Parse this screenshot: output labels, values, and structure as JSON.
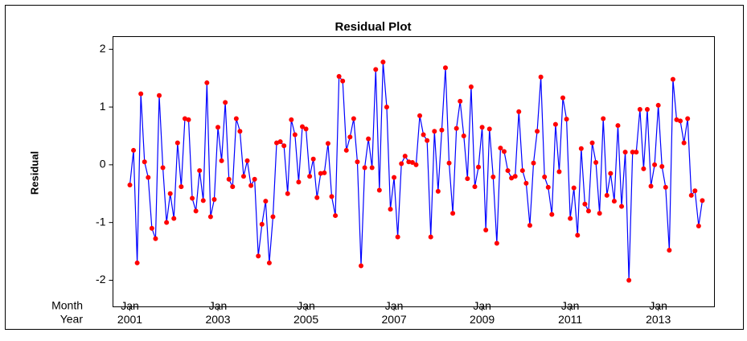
{
  "chart_data": {
    "type": "line",
    "title": "Residual Plot",
    "ylabel": "Residual",
    "xrow_labels": [
      "Month",
      "Year"
    ],
    "values": [
      -0.35,
      0.25,
      -1.7,
      1.23,
      0.05,
      -0.22,
      -1.1,
      -1.28,
      1.2,
      -0.05,
      -1.0,
      -0.5,
      -0.93,
      0.38,
      -0.38,
      0.8,
      0.78,
      -0.58,
      -0.8,
      -0.1,
      -0.62,
      1.42,
      -0.9,
      -0.6,
      0.65,
      0.07,
      1.08,
      -0.25,
      -0.38,
      0.8,
      0.58,
      -0.2,
      0.07,
      -0.36,
      -0.25,
      -1.58,
      -1.03,
      -0.63,
      -1.7,
      -0.9,
      0.38,
      0.4,
      0.33,
      -0.5,
      0.78,
      0.52,
      -0.3,
      0.66,
      0.62,
      -0.2,
      0.1,
      -0.57,
      -0.15,
      -0.14,
      0.37,
      -0.55,
      -0.88,
      1.53,
      1.45,
      0.25,
      0.48,
      0.8,
      0.05,
      -1.75,
      -0.05,
      0.45,
      -0.05,
      1.65,
      -0.44,
      1.78,
      1.0,
      -0.77,
      -0.22,
      -1.25,
      0.02,
      0.15,
      0.05,
      0.04,
      0.0,
      0.85,
      0.52,
      0.42,
      -1.25,
      0.58,
      -0.46,
      0.6,
      1.68,
      0.03,
      -0.84,
      0.63,
      1.1,
      0.5,
      -0.24,
      1.35,
      -0.38,
      -0.04,
      0.65,
      -1.13,
      0.62,
      -0.21,
      -1.36,
      0.29,
      0.23,
      -0.1,
      -0.23,
      -0.2,
      0.92,
      -0.1,
      -0.32,
      -1.05,
      0.03,
      0.58,
      1.52,
      -0.21,
      -0.39,
      -0.86,
      0.7,
      -0.12,
      1.16,
      0.79,
      -0.93,
      -0.4,
      -1.22,
      0.28,
      -0.68,
      -0.8,
      0.38,
      0.04,
      -0.84,
      0.8,
      -0.53,
      -0.15,
      -0.63,
      0.68,
      -0.72,
      0.22,
      -2.0,
      0.22,
      0.22,
      0.96,
      -0.07,
      0.96,
      -0.37,
      0.0,
      1.03,
      -0.03,
      -0.39,
      -1.48,
      1.48,
      0.78,
      0.76,
      0.38,
      0.8,
      -0.53,
      -0.45,
      -1.06,
      -0.62
    ],
    "line_color": "#0000ff",
    "marker_color": "#ff0000",
    "xlim": [
      -4.6,
      159.3
    ],
    "ylim": [
      -2.46,
      2.22
    ],
    "yticks": [
      -2,
      -1,
      0,
      1,
      2
    ],
    "xticks": [
      {
        "value": 0,
        "label": "Jan"
      },
      {
        "value": 24,
        "label": "Jan"
      },
      {
        "value": 48,
        "label": "Jan"
      },
      {
        "value": 72,
        "label": "Jan"
      },
      {
        "value": 96,
        "label": "Jan"
      },
      {
        "value": 120,
        "label": "Jan"
      },
      {
        "value": 144,
        "label": "Jan"
      }
    ],
    "xticks_year": [
      {
        "value": 0,
        "label": "2001"
      },
      {
        "value": 24,
        "label": "2003"
      },
      {
        "value": 48,
        "label": "2005"
      },
      {
        "value": 72,
        "label": "2007"
      },
      {
        "value": 96,
        "label": "2009"
      },
      {
        "value": 120,
        "label": "2011"
      },
      {
        "value": 144,
        "label": "2013"
      }
    ]
  }
}
